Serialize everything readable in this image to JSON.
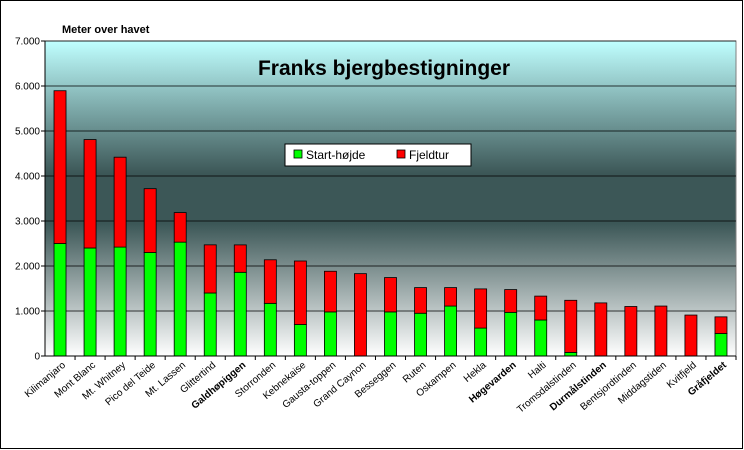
{
  "chart_data": {
    "type": "bar",
    "stacked": true,
    "title": "Franks bjergbestigninger",
    "ylabel": "Meter over havet",
    "xlabel": "",
    "ylim": [
      0,
      7000
    ],
    "yticks": [
      0,
      1000,
      2000,
      3000,
      4000,
      5000,
      6000,
      7000
    ],
    "ytick_labels": [
      "0",
      "1.000",
      "2.000",
      "3.000",
      "4.000",
      "5.000",
      "6.000",
      "7.000"
    ],
    "grid": true,
    "legend_position": "center",
    "categories": [
      "Kilimanjaro",
      "Mont Blanc",
      "Mt. Whitney",
      "Pico del Teide",
      "Mt. Lassen",
      "Glittertind",
      "Galdhøpiggen",
      "Storronden",
      "Kebnekaise",
      "Gausta-toppen",
      "Grand Caynon",
      "Besseggen",
      "Ruten",
      "Oskampen",
      "Hekla",
      "Høgevarden",
      "Halti",
      "Tromsdalstinden",
      "Durmålstinden",
      "Bentsjordtinden",
      "Middagstiden",
      "Kvitfjeld",
      "Gråfjeldet"
    ],
    "bold_categories": [
      "Galdhøpiggen",
      "Høgevarden",
      "Durmålstinden",
      "Gråfjeldet"
    ],
    "series": [
      {
        "name": "Start-højde",
        "color": "#00ff00",
        "values": [
          2500,
          2400,
          2420,
          2300,
          2530,
          1400,
          1860,
          1170,
          700,
          980,
          0,
          980,
          950,
          1110,
          620,
          970,
          800,
          80,
          0,
          0,
          0,
          0,
          500
        ]
      },
      {
        "name": "Fjeldtur",
        "color": "#ff0000",
        "values": [
          3395,
          2410,
          1998,
          1418,
          657,
          1070,
          609,
          968,
          1411,
          903,
          1830,
          763,
          570,
          410,
          871,
          506,
          531,
          1158,
          1180,
          1100,
          1110,
          910,
          370
        ]
      }
    ]
  },
  "colors": {
    "plot_top": "#c0ffff",
    "plot_bottom": "#ffffff",
    "plot_mid": "#3f5a5a",
    "gridline": "#000000",
    "bar_outline": "#000000"
  }
}
